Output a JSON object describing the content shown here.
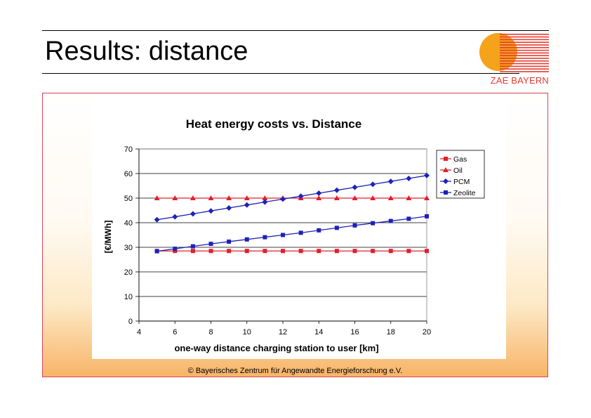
{
  "slide": {
    "title": "Results: distance",
    "logo_text": "ZAE BAYERN",
    "footer": "© Bayerisches Zentrum für Angewandte Energieforschung e.V."
  },
  "colors": {
    "red": "#e0202a",
    "blue": "#1e22b8",
    "logo_orange": "#f5a31a",
    "logo_red": "#e33b2e"
  },
  "chart_data": {
    "type": "line",
    "title": "Heat energy costs vs. Distance",
    "xlabel": "one-way distance charging station to user [km]",
    "ylabel": "[€/MWh]",
    "xlim": [
      4,
      20
    ],
    "ylim": [
      0,
      70
    ],
    "xticks": [
      4,
      6,
      8,
      10,
      12,
      14,
      16,
      18,
      20
    ],
    "yticks": [
      0,
      10,
      20,
      30,
      40,
      50,
      60,
      70
    ],
    "legend_position": "right",
    "x": [
      5,
      6,
      7,
      8,
      9,
      10,
      11,
      12,
      13,
      14,
      15,
      16,
      17,
      18,
      19,
      20
    ],
    "series": [
      {
        "name": "Gas",
        "color": "#e0202a",
        "marker": "square",
        "values": [
          28.5,
          28.5,
          28.5,
          28.5,
          28.5,
          28.5,
          28.5,
          28.5,
          28.5,
          28.5,
          28.5,
          28.5,
          28.5,
          28.5,
          28.5,
          28.5
        ]
      },
      {
        "name": "Oil",
        "color": "#e0202a",
        "marker": "triangle",
        "values": [
          50,
          50,
          50,
          50,
          50,
          50,
          50,
          50,
          50,
          50,
          50,
          50,
          50,
          50,
          50,
          50
        ]
      },
      {
        "name": "PCM",
        "color": "#1e22b8",
        "marker": "diamond",
        "values": [
          41.2,
          42.4,
          43.6,
          44.8,
          46.0,
          47.2,
          48.4,
          49.6,
          50.8,
          52.0,
          53.2,
          54.4,
          55.6,
          56.8,
          58.0,
          59.2
        ]
      },
      {
        "name": "Zeolite",
        "color": "#1e22b8",
        "marker": "square",
        "values": [
          28.4,
          29.4,
          30.4,
          31.4,
          32.3,
          33.2,
          34.1,
          35.0,
          35.9,
          36.9,
          37.9,
          38.9,
          39.8,
          40.7,
          41.6,
          42.6
        ]
      }
    ]
  }
}
